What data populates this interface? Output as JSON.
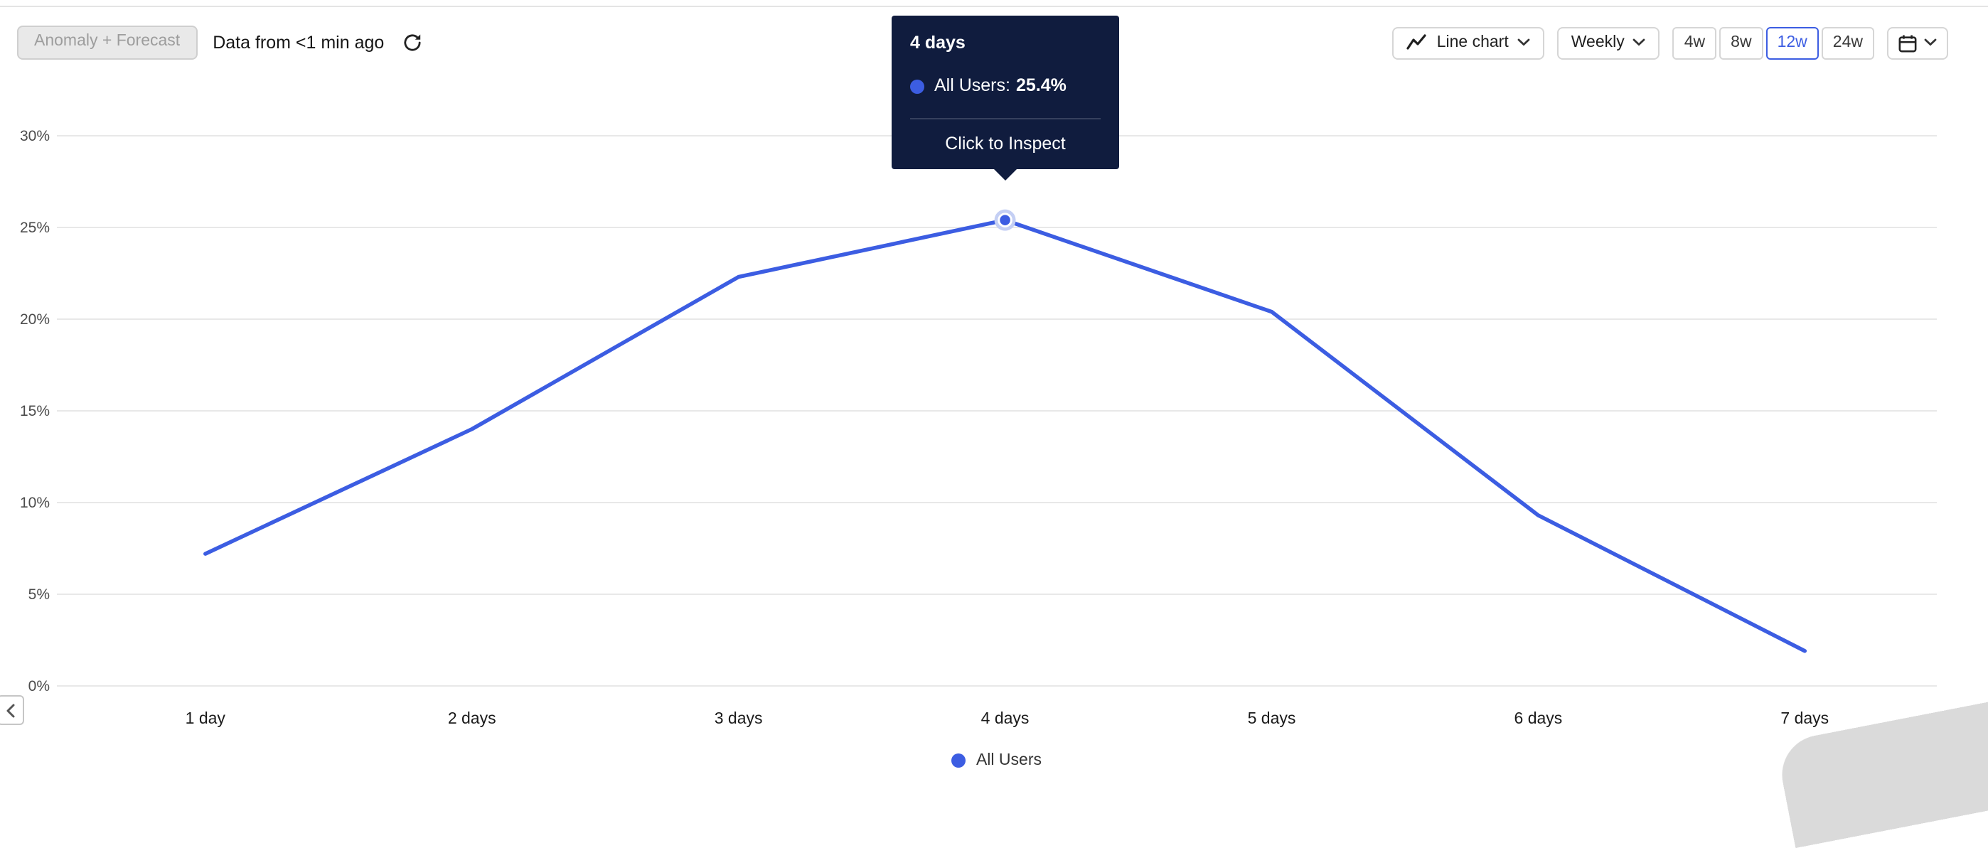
{
  "header": {
    "anomaly_button_label": "Anomaly + Forecast",
    "data_freshness": "Data from <1 min ago"
  },
  "controls": {
    "chart_type": {
      "label": "Line chart"
    },
    "interval": {
      "label": "Weekly"
    },
    "ranges": [
      {
        "label": "4w",
        "selected": false
      },
      {
        "label": "8w",
        "selected": false
      },
      {
        "label": "12w",
        "selected": true
      },
      {
        "label": "24w",
        "selected": false
      }
    ]
  },
  "tooltip": {
    "title": "4 days",
    "series_label": "All Users:",
    "value": "25.4%",
    "action": "Click to Inspect"
  },
  "legend": [
    {
      "label": "All Users",
      "color": "#3C5DE2"
    }
  ],
  "icons": {
    "refresh": "refresh-icon",
    "chart_type": "line-chart-icon",
    "dropdown": "chevron-down-icon",
    "calendar": "calendar-icon",
    "collapse": "chevron-left-icon"
  },
  "colors": {
    "accent": "#3C5DE2",
    "tooltip_bg": "#101C3E",
    "grid": "#E8E8E8",
    "marker_halo": "#C4CFF4"
  },
  "chart_data": {
    "type": "line",
    "title": "",
    "xlabel": "",
    "ylabel": "",
    "categories": [
      "1 day",
      "2 days",
      "3 days",
      "4 days",
      "5 days",
      "6 days",
      "7 days"
    ],
    "series": [
      {
        "name": "All Users",
        "color": "#3C5DE2",
        "values": [
          7.2,
          14.0,
          22.3,
          25.4,
          20.4,
          9.3,
          1.9
        ]
      }
    ],
    "ylim": [
      0,
      30
    ],
    "yticks": [
      0,
      5,
      10,
      15,
      20,
      25,
      30
    ],
    "ytick_suffix": "%",
    "grid": true,
    "legend_position": "bottom",
    "highlight": {
      "series": "All Users",
      "category_index": 3,
      "value_label": "25.4%"
    }
  }
}
